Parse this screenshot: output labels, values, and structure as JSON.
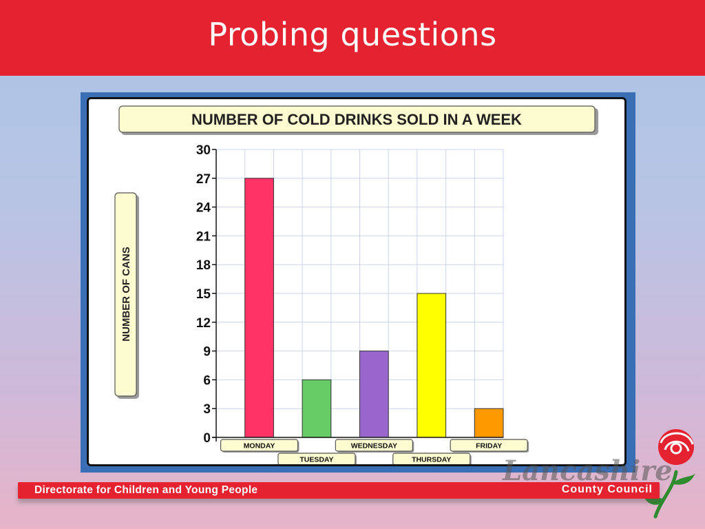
{
  "slide": {
    "title": "Probing questions"
  },
  "footer": {
    "directorate": "Directorate for Children and Young People",
    "council": "County Council"
  },
  "colors": {
    "banner": "#e52330",
    "frame": "#3b6fb5",
    "label_box": "#fdfbd0"
  },
  "chart_data": {
    "type": "bar",
    "title": "NUMBER OF COLD DRINKS SOLD IN A WEEK",
    "xlabel": "",
    "ylabel": "NUMBER OF CANS",
    "categories": [
      "MONDAY",
      "TUESDAY",
      "WEDNESDAY",
      "THURSDAY",
      "FRIDAY"
    ],
    "values": [
      27,
      6,
      9,
      15,
      3
    ],
    "bar_colors": [
      "#ff3366",
      "#66cc66",
      "#9966cc",
      "#ffff00",
      "#ff9900"
    ],
    "ylim": [
      0,
      30
    ],
    "yticks": [
      0,
      3,
      6,
      9,
      12,
      15,
      18,
      21,
      24,
      27,
      30
    ],
    "grid": true
  }
}
